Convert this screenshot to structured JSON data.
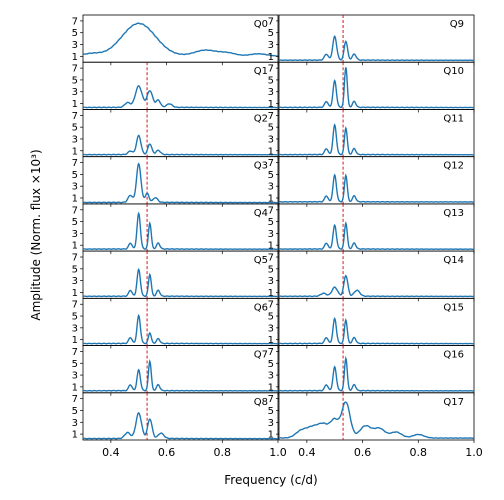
{
  "chart_data": {
    "type": "line",
    "ylabel": "Amplitude (Norm. flux ×10³)",
    "xlabel": "Frequency (c/d)",
    "xlim": [
      0.3,
      1.0
    ],
    "ylim": [
      0,
      8
    ],
    "xticks": [
      "0.4",
      "0.6",
      "0.8",
      "1.0"
    ],
    "yticks": [
      "1",
      "3",
      "5",
      "7"
    ],
    "reference_line": {
      "x": 0.53,
      "color": "#cc0000",
      "style": "dashed"
    },
    "line_color": "#1f77b4",
    "panels": [
      {
        "label": "Q0",
        "reference_line": false,
        "base": 1.0,
        "peaks": [
          [
            0.5,
            5.5,
            0.06
          ]
        ],
        "sidelobes": [
          [
            0.33,
            0.4,
            0.03
          ],
          [
            0.74,
            1.0,
            0.04
          ],
          [
            0.82,
            0.5,
            0.03
          ],
          [
            0.93,
            0.4,
            0.03
          ]
        ]
      },
      {
        "label": "Q1",
        "base": 0.3,
        "peaks": [
          [
            0.5,
            3.6,
            0.012
          ],
          [
            0.54,
            2.8,
            0.01
          ],
          [
            0.57,
            1.2,
            0.008
          ]
        ],
        "sidelobes": [
          [
            0.46,
            0.8,
            0.01
          ],
          [
            0.61,
            0.6,
            0.01
          ]
        ]
      },
      {
        "label": "Q2",
        "base": 0.3,
        "peaks": [
          [
            0.5,
            3.2,
            0.008
          ],
          [
            0.54,
            1.8,
            0.007
          ]
        ],
        "sidelobes": [
          [
            0.47,
            0.6,
            0.008
          ],
          [
            0.57,
            0.7,
            0.008
          ]
        ]
      },
      {
        "label": "Q3",
        "base": 0.2,
        "peaks": [
          [
            0.5,
            6.5,
            0.008
          ],
          [
            0.53,
            1.5,
            0.007
          ]
        ],
        "sidelobes": [
          [
            0.47,
            1.2,
            0.008
          ],
          [
            0.56,
            0.8,
            0.008
          ]
        ]
      },
      {
        "label": "Q4",
        "base": 0.3,
        "peaks": [
          [
            0.5,
            6.0,
            0.006
          ],
          [
            0.54,
            4.4,
            0.005
          ]
        ],
        "sidelobes": [
          [
            0.47,
            1.0,
            0.006
          ],
          [
            0.57,
            1.0,
            0.006
          ]
        ]
      },
      {
        "label": "Q5",
        "base": 0.3,
        "peaks": [
          [
            0.5,
            4.5,
            0.006
          ],
          [
            0.54,
            3.7,
            0.005
          ]
        ],
        "sidelobes": [
          [
            0.47,
            1.0,
            0.006
          ],
          [
            0.57,
            1.0,
            0.006
          ]
        ]
      },
      {
        "label": "Q6",
        "base": 0.3,
        "peaks": [
          [
            0.5,
            4.7,
            0.006
          ],
          [
            0.54,
            1.8,
            0.005
          ]
        ],
        "sidelobes": [
          [
            0.47,
            1.0,
            0.006
          ],
          [
            0.57,
            0.8,
            0.006
          ]
        ]
      },
      {
        "label": "Q7",
        "base": 0.3,
        "peaks": [
          [
            0.5,
            3.5,
            0.006
          ],
          [
            0.54,
            5.0,
            0.005
          ]
        ],
        "sidelobes": [
          [
            0.47,
            1.0,
            0.006
          ],
          [
            0.57,
            1.0,
            0.006
          ]
        ]
      },
      {
        "label": "Q8",
        "base": 0.2,
        "peaks": [
          [
            0.5,
            4.3,
            0.01
          ],
          [
            0.54,
            3.3,
            0.008
          ]
        ],
        "sidelobes": [
          [
            0.46,
            1.0,
            0.01
          ],
          [
            0.58,
            0.9,
            0.01
          ]
        ]
      },
      {
        "label": "Q9",
        "base": 0.3,
        "peaks": [
          [
            0.5,
            4.0,
            0.007
          ],
          [
            0.54,
            3.2,
            0.006
          ]
        ],
        "sidelobes": [
          [
            0.47,
            1.0,
            0.007
          ],
          [
            0.57,
            1.0,
            0.007
          ]
        ]
      },
      {
        "label": "Q10",
        "base": 0.3,
        "peaks": [
          [
            0.5,
            4.5,
            0.006
          ],
          [
            0.54,
            6.8,
            0.005
          ]
        ],
        "sidelobes": [
          [
            0.47,
            1.0,
            0.006
          ],
          [
            0.57,
            1.0,
            0.006
          ]
        ]
      },
      {
        "label": "Q11",
        "base": 0.3,
        "peaks": [
          [
            0.5,
            5.0,
            0.006
          ],
          [
            0.54,
            4.5,
            0.005
          ]
        ],
        "sidelobes": [
          [
            0.47,
            1.0,
            0.006
          ],
          [
            0.57,
            1.0,
            0.006
          ]
        ]
      },
      {
        "label": "Q12",
        "base": 0.3,
        "peaks": [
          [
            0.5,
            4.5,
            0.006
          ],
          [
            0.54,
            4.5,
            0.005
          ]
        ],
        "sidelobes": [
          [
            0.47,
            1.0,
            0.006
          ],
          [
            0.57,
            1.0,
            0.006
          ]
        ]
      },
      {
        "label": "Q13",
        "base": 0.3,
        "peaks": [
          [
            0.5,
            4.0,
            0.006
          ],
          [
            0.54,
            4.4,
            0.005
          ]
        ],
        "sidelobes": [
          [
            0.47,
            1.0,
            0.006
          ],
          [
            0.57,
            1.0,
            0.006
          ]
        ]
      },
      {
        "label": "Q14",
        "base": 0.3,
        "peaks": [
          [
            0.5,
            1.5,
            0.01
          ],
          [
            0.54,
            3.5,
            0.007
          ]
        ],
        "sidelobes": [
          [
            0.46,
            0.5,
            0.01
          ],
          [
            0.58,
            1.0,
            0.01
          ]
        ]
      },
      {
        "label": "Q15",
        "base": 0.3,
        "peaks": [
          [
            0.5,
            4.2,
            0.006
          ],
          [
            0.54,
            4.0,
            0.005
          ]
        ],
        "sidelobes": [
          [
            0.47,
            1.0,
            0.006
          ],
          [
            0.57,
            1.0,
            0.006
          ]
        ]
      },
      {
        "label": "Q16",
        "base": 0.3,
        "peaks": [
          [
            0.5,
            4.0,
            0.006
          ],
          [
            0.54,
            5.5,
            0.005
          ]
        ],
        "sidelobes": [
          [
            0.47,
            1.0,
            0.006
          ],
          [
            0.57,
            1.0,
            0.006
          ]
        ]
      },
      {
        "label": "Q17",
        "base": 0.3,
        "peaks": [
          [
            0.54,
            6.0,
            0.015
          ],
          [
            0.5,
            2.8,
            0.015
          ]
        ],
        "sidelobes": [
          [
            0.38,
            1.2,
            0.02
          ],
          [
            0.42,
            1.6,
            0.02
          ],
          [
            0.46,
            2.2,
            0.02
          ],
          [
            0.61,
            2.0,
            0.02
          ],
          [
            0.66,
            1.6,
            0.02
          ],
          [
            0.72,
            1.0,
            0.02
          ],
          [
            0.8,
            0.6,
            0.02
          ]
        ]
      }
    ]
  }
}
